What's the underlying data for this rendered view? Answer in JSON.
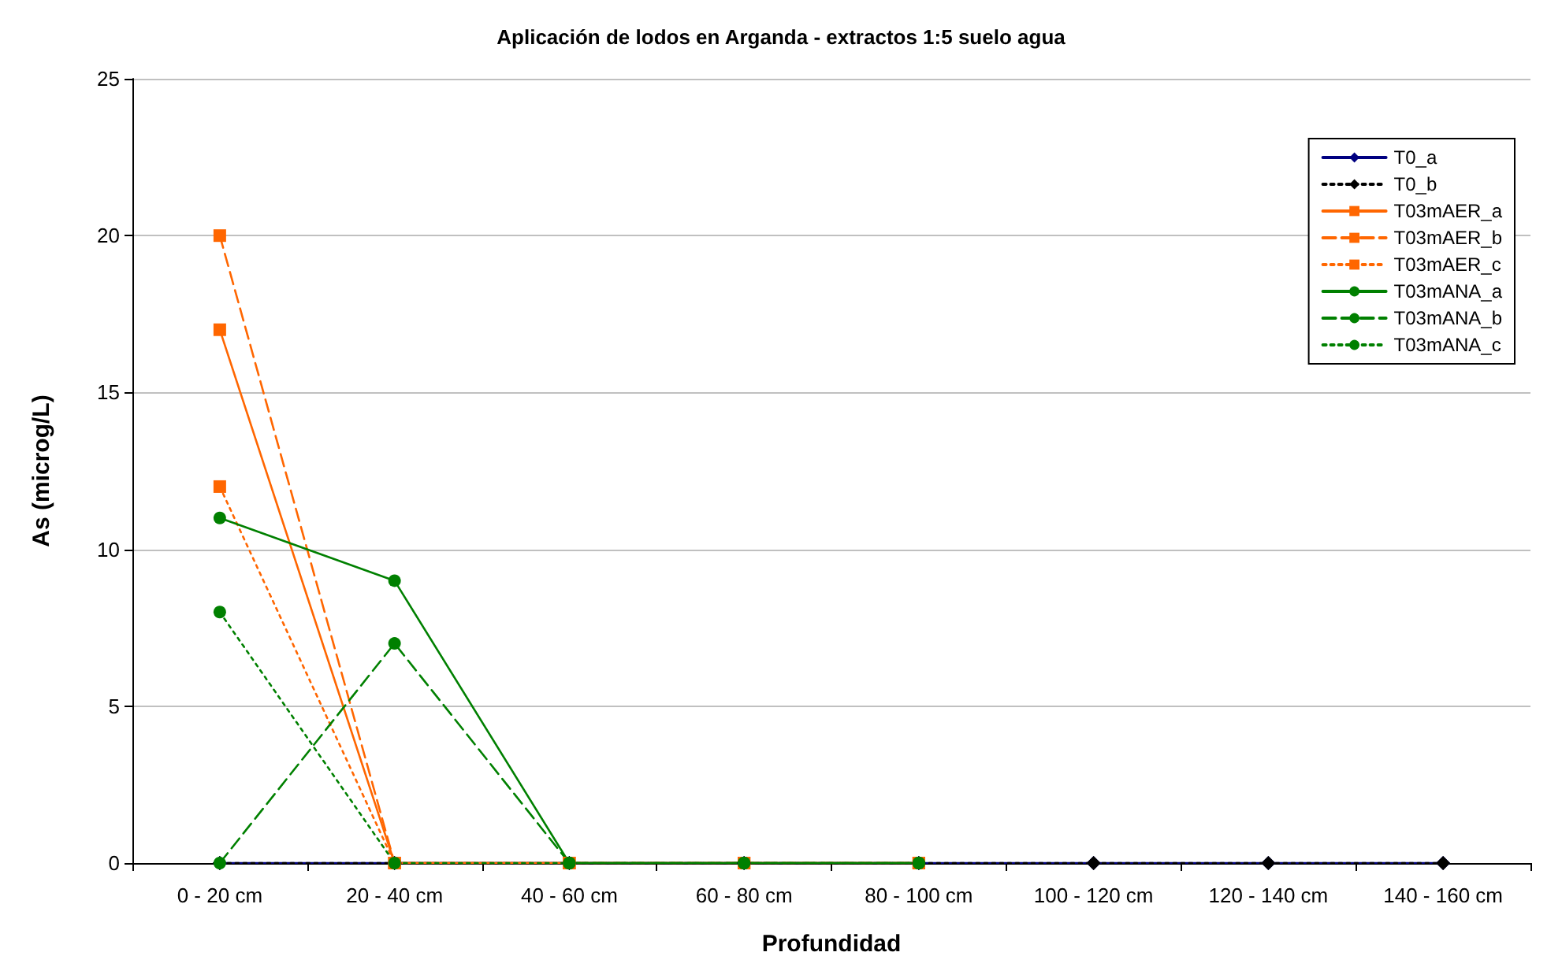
{
  "chart_data": {
    "type": "line",
    "title": "Aplicación de lodos en Arganda - extractos 1:5 suelo agua",
    "xlabel": "Profundidad",
    "ylabel": "As (microg/L)",
    "categories": [
      "0 - 20 cm",
      "20 - 40 cm",
      "40 - 60 cm",
      "60 - 80 cm",
      "80 - 100 cm",
      "100 - 120 cm",
      "120 - 140 cm",
      "140 - 160 cm"
    ],
    "ylim": [
      0,
      25
    ],
    "yticks": [
      0,
      5,
      10,
      15,
      20,
      25
    ],
    "grid": "y",
    "legend": "top right",
    "series": [
      {
        "name": "T0_a",
        "color": "#000080",
        "marker": "diamond",
        "line_style": "solid",
        "values": [
          0,
          0,
          0,
          0,
          0,
          0,
          0,
          0
        ]
      },
      {
        "name": "T0_b",
        "color": "#000000",
        "marker": "diamond",
        "line_style": "dotted",
        "values": [
          0,
          0,
          0,
          0,
          0,
          0,
          0,
          0
        ]
      },
      {
        "name": "T03mAER_a",
        "color": "#ff6600",
        "marker": "square",
        "line_style": "solid",
        "values": [
          17,
          0,
          0,
          0,
          0,
          null,
          null,
          null
        ]
      },
      {
        "name": "T03mAER_b",
        "color": "#ff6600",
        "marker": "square",
        "line_style": "dashed",
        "values": [
          20,
          0,
          0,
          0,
          0,
          null,
          null,
          null
        ]
      },
      {
        "name": "T03mAER_c",
        "color": "#ff6600",
        "marker": "square",
        "line_style": "dotted",
        "values": [
          12,
          0,
          0,
          0,
          0,
          null,
          null,
          null
        ]
      },
      {
        "name": "T03mANA_a",
        "color": "#008000",
        "marker": "circle",
        "line_style": "solid",
        "values": [
          11,
          9,
          0,
          0,
          0,
          null,
          null,
          null
        ]
      },
      {
        "name": "T03mANA_b",
        "color": "#008000",
        "marker": "circle",
        "line_style": "dashed",
        "values": [
          0,
          7,
          0,
          0,
          0,
          null,
          null,
          null
        ]
      },
      {
        "name": "T03mANA_c",
        "color": "#008000",
        "marker": "circle",
        "line_style": "dotted",
        "values": [
          8,
          0,
          0,
          0,
          0,
          null,
          null,
          null
        ]
      }
    ]
  }
}
